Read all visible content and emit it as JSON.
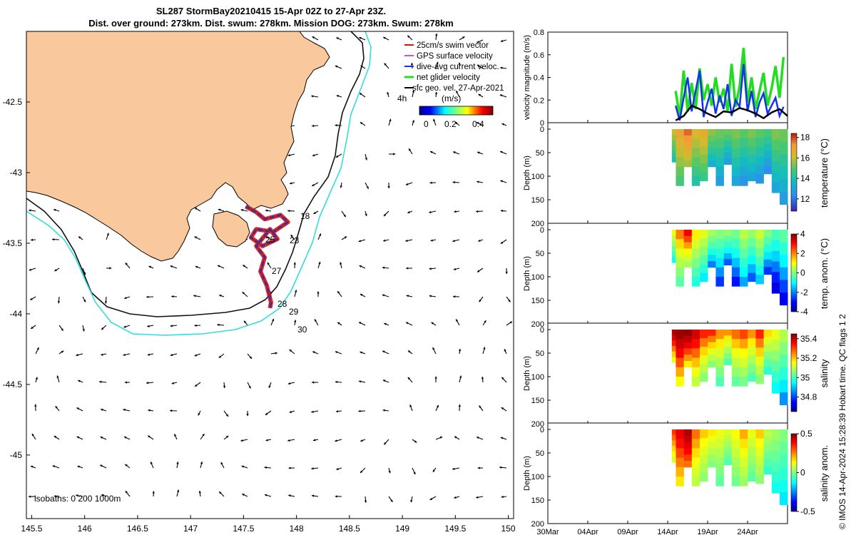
{
  "figure": {
    "title_line1": "SL287 StormBay20210415 15-Apr 02Z to 27-Apr 23Z.",
    "title_line2": "Dist. over ground: 273km. Dist. swum: 278km. Mission DOG: 273km. Swum: 278km",
    "credit": "© IMOS 14-Apr-2024 15:28:39 Hobart time. QC flags 1  2"
  },
  "colors": {
    "land": "#f9c99d",
    "track_red": "#dd1111",
    "track_blue": "#1133ee",
    "isobath_200": "#111111",
    "isobath_1000": "#33dddd",
    "net_velocity": "#22dd22",
    "gps_velocity": "#cc55cc"
  },
  "chart_data": [
    {
      "type": "map",
      "title": "Glider track and velocity vectors",
      "x_ticks": [
        "145.5",
        "146",
        "146.5",
        "147",
        "147.5",
        "148",
        "148.5",
        "149",
        "149.5",
        "150"
      ],
      "y_ticks": [
        "-42.5",
        "-43",
        "-43.5",
        "-44",
        "-44.5",
        "-45"
      ],
      "xlim": [
        145.45,
        150.05
      ],
      "ylim": [
        -45.45,
        -42.0
      ],
      "legend": [
        {
          "label": "25cm/s swim vector",
          "color": "#dd1111"
        },
        {
          "label": "GPS surface velocity",
          "color": "#cc55cc"
        },
        {
          "label": "dive-avg current veloc.",
          "color": "#1133ee"
        },
        {
          "label": "net glider velocity",
          "color": "#22dd22"
        },
        {
          "label": "sfc geo. vel. 27-Apr-2021",
          "color": "#000000"
        }
      ],
      "legend_extra": "4h",
      "colorbar": {
        "label": "(m/s)",
        "ticks": [
          "0",
          "0.2",
          "0.4"
        ],
        "range": [
          0,
          0.5
        ]
      },
      "day_labels": [
        "18",
        "23",
        "25",
        "27",
        "28",
        "29",
        "30"
      ],
      "track_points": [
        [
          147.52,
          -43.24
        ],
        [
          147.62,
          -43.28
        ],
        [
          147.7,
          -43.33
        ],
        [
          147.85,
          -43.3
        ],
        [
          147.92,
          -43.35
        ],
        [
          147.78,
          -43.42
        ],
        [
          147.62,
          -43.4
        ],
        [
          147.57,
          -43.46
        ],
        [
          147.68,
          -43.52
        ],
        [
          147.82,
          -43.47
        ],
        [
          147.75,
          -43.4
        ],
        [
          147.62,
          -43.52
        ],
        [
          147.7,
          -43.6
        ],
        [
          147.66,
          -43.7
        ],
        [
          147.72,
          -43.8
        ],
        [
          147.76,
          -43.92
        ],
        [
          147.75,
          -43.96
        ]
      ],
      "isobaths_label": "isobaths: 0   200   1000m"
    },
    {
      "type": "line",
      "ylabel": "velocity magnitude (m/s)",
      "ylim": [
        0,
        0.8
      ],
      "y_ticks": [
        "0",
        "0.2",
        "0.4",
        "0.6",
        "0.8"
      ],
      "x_range_days": [
        0,
        30
      ],
      "series": [
        {
          "name": "net glider velocity",
          "color": "#22dd22",
          "x": [
            16.0,
            16.5,
            17.0,
            17.5,
            18.0,
            18.5,
            19.0,
            19.5,
            20.0,
            20.5,
            21.0,
            21.5,
            22.0,
            22.5,
            23.0,
            23.5,
            24.0,
            24.5,
            25.0,
            25.5,
            26.0,
            26.5,
            27.0,
            27.5,
            28.0,
            28.5,
            29.0,
            29.5
          ],
          "values": [
            0.28,
            0.05,
            0.46,
            0.1,
            0.35,
            0.12,
            0.48,
            0.2,
            0.34,
            0.15,
            0.4,
            0.18,
            0.3,
            0.1,
            0.52,
            0.14,
            0.32,
            0.66,
            0.18,
            0.4,
            0.12,
            0.28,
            0.44,
            0.15,
            0.3,
            0.5,
            0.22,
            0.58
          ]
        },
        {
          "name": "dive-avg current veloc.",
          "color": "#1133ee",
          "x": [
            16.0,
            16.5,
            17.0,
            17.5,
            18.0,
            18.5,
            19.0,
            19.5,
            20.0,
            20.5,
            21.0,
            21.5,
            22.0,
            22.5,
            23.0,
            23.5,
            24.0,
            24.5,
            25.0,
            25.5,
            26.0,
            26.5,
            27.0,
            27.5,
            28.0,
            28.5,
            29.0,
            29.5
          ],
          "values": [
            0.15,
            0.02,
            0.22,
            0.4,
            0.1,
            0.28,
            0.46,
            0.05,
            0.18,
            0.3,
            0.08,
            0.24,
            0.12,
            0.34,
            0.06,
            0.2,
            0.14,
            0.52,
            0.1,
            0.28,
            0.05,
            0.18,
            0.26,
            0.08,
            0.15,
            0.22,
            0.06,
            0.14
          ]
        },
        {
          "name": "sfc geo. vel.",
          "color": "#000000",
          "x": [
            16.0,
            17.0,
            18.0,
            19.0,
            20.0,
            21.0,
            22.0,
            23.0,
            24.0,
            25.0,
            26.0,
            27.0,
            28.0,
            29.0,
            30.0
          ],
          "values": [
            0.02,
            0.06,
            0.15,
            0.12,
            0.08,
            0.05,
            0.1,
            0.09,
            0.13,
            0.11,
            0.08,
            0.04,
            0.09,
            0.12,
            0.06
          ]
        }
      ]
    },
    {
      "type": "heatmap",
      "ylabel": "Depth (m)",
      "clabel": "temperature (°C)",
      "y_ticks": [
        "0",
        "50",
        "100",
        "150",
        "200"
      ],
      "cbar_ticks": [
        "12",
        "14",
        "16",
        "18"
      ],
      "crange": [
        10.8,
        18.4
      ],
      "colormap": "parula",
      "x_days": [
        16,
        17,
        18,
        19,
        20,
        21,
        22,
        23,
        24,
        25,
        26,
        27,
        28,
        29,
        30
      ],
      "max_depth": [
        70,
        120,
        80,
        120,
        110,
        80,
        120,
        75,
        120,
        120,
        110,
        115,
        95,
        135,
        160
      ],
      "values": [
        15.8,
        16.6,
        17.6,
        16.0,
        16.4,
        15.2,
        14.8,
        14.8,
        15.0,
        14.6,
        15.0,
        14.6,
        14.4,
        15.0,
        14.8
      ]
    },
    {
      "type": "heatmap",
      "ylabel": "Depth (m)",
      "clabel": "temp. anom. (°C)",
      "y_ticks": [
        "0",
        "50",
        "100",
        "150",
        "200"
      ],
      "cbar_ticks": [
        "-4",
        "-2",
        "0",
        "2",
        "4"
      ],
      "crange": [
        -4,
        4
      ],
      "colormap": "jet",
      "x_days": [
        16,
        17,
        18,
        19,
        20,
        21,
        22,
        23,
        24,
        25,
        26,
        27,
        28,
        29,
        30
      ],
      "max_depth": [
        70,
        120,
        80,
        120,
        110,
        80,
        120,
        75,
        120,
        120,
        110,
        115,
        95,
        135,
        160
      ],
      "values": [
        1.2,
        2.0,
        2.8,
        1.4,
        1.0,
        0.4,
        0.0,
        0.2,
        -0.2,
        0.6,
        0.2,
        0.8,
        0.0,
        -0.6,
        -0.4
      ]
    },
    {
      "type": "heatmap",
      "ylabel": "Depth (m)",
      "clabel": "salinity",
      "y_ticks": [
        "0",
        "50",
        "100",
        "150",
        "200"
      ],
      "cbar_ticks": [
        "34.8",
        "35",
        "35.2",
        "35.4"
      ],
      "crange": [
        34.65,
        35.45
      ],
      "colormap": "jet",
      "x_days": [
        16,
        17,
        18,
        19,
        20,
        21,
        22,
        23,
        24,
        25,
        26,
        27,
        28,
        29,
        30
      ],
      "max_depth": [
        70,
        120,
        80,
        120,
        110,
        80,
        120,
        75,
        120,
        120,
        110,
        115,
        95,
        135,
        160
      ],
      "values": [
        35.4,
        35.42,
        35.43,
        35.36,
        35.3,
        35.3,
        35.24,
        35.24,
        35.26,
        35.28,
        35.24,
        35.3,
        35.2,
        35.16,
        35.1
      ]
    },
    {
      "type": "heatmap",
      "ylabel": "Depth (m)",
      "clabel": "salinity anom.",
      "y_ticks": [
        "0",
        "50",
        "100",
        "150",
        "200"
      ],
      "cbar_ticks": [
        "-0.5",
        "0",
        "0.5"
      ],
      "crange": [
        -0.5,
        0.5
      ],
      "colormap": "jet",
      "x_days": [
        16,
        17,
        18,
        19,
        20,
        21,
        22,
        23,
        24,
        25,
        26,
        27,
        28,
        29,
        30
      ],
      "max_depth": [
        70,
        120,
        80,
        120,
        110,
        80,
        120,
        75,
        120,
        120,
        110,
        115,
        95,
        135,
        160
      ],
      "values": [
        0.3,
        0.36,
        0.44,
        0.26,
        0.2,
        0.18,
        0.14,
        0.12,
        0.16,
        0.22,
        0.14,
        0.2,
        0.08,
        0.04,
        0.0
      ]
    }
  ],
  "time_axis": {
    "ticks": [
      "30Mar",
      "04Apr",
      "09Apr",
      "14Apr",
      "19Apr",
      "24Apr"
    ],
    "tick_days": [
      0,
      5,
      10,
      15,
      20,
      25
    ],
    "range_days": [
      0,
      30
    ]
  }
}
